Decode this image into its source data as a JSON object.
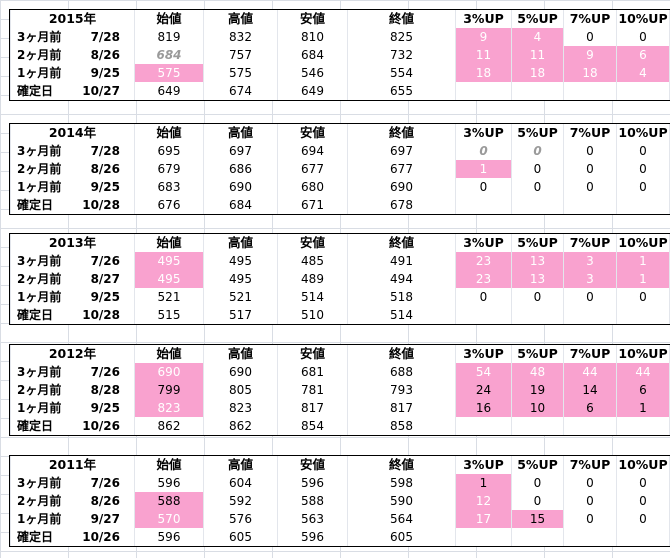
{
  "columns": [
    "始値",
    "高値",
    "安値",
    "終値",
    "3%UP",
    "5%UP",
    "7%UP",
    "10%UP"
  ],
  "colors": {
    "highlight": "#f9a2cf",
    "gray_text": "#9a9a9a"
  },
  "tables": [
    {
      "year": "2015年",
      "rows": [
        {
          "label": "3ヶ月前",
          "date": "7/28",
          "open": "819",
          "high": "832",
          "low": "810",
          "close": "825",
          "up3": "9",
          "up5": "4",
          "up7": "0",
          "up10": "0"
        },
        {
          "label": "2ヶ月前",
          "date": "8/26",
          "open": "684",
          "high": "757",
          "low": "684",
          "close": "732",
          "up3": "11",
          "up5": "11",
          "up7": "9",
          "up10": "6"
        },
        {
          "label": "1ヶ月前",
          "date": "9/25",
          "open": "575",
          "high": "575",
          "low": "546",
          "close": "554",
          "up3": "18",
          "up5": "18",
          "up7": "18",
          "up10": "4"
        },
        {
          "label": "確定日",
          "date": "10/27",
          "open": "649",
          "high": "674",
          "low": "649",
          "close": "655"
        }
      ]
    },
    {
      "year": "2014年",
      "rows": [
        {
          "label": "3ヶ月前",
          "date": "7/28",
          "open": "695",
          "high": "697",
          "low": "694",
          "close": "697",
          "up3": "0",
          "up5": "0",
          "up7": "0",
          "up10": "0"
        },
        {
          "label": "2ヶ月前",
          "date": "8/26",
          "open": "679",
          "high": "686",
          "low": "677",
          "close": "677",
          "up3": "1",
          "up5": "0",
          "up7": "0",
          "up10": "0"
        },
        {
          "label": "1ヶ月前",
          "date": "9/25",
          "open": "683",
          "high": "690",
          "low": "680",
          "close": "690",
          "up3": "0",
          "up5": "0",
          "up7": "0",
          "up10": "0"
        },
        {
          "label": "確定日",
          "date": "10/28",
          "open": "676",
          "high": "684",
          "low": "671",
          "close": "678"
        }
      ]
    },
    {
      "year": "2013年",
      "rows": [
        {
          "label": "3ヶ月前",
          "date": "7/26",
          "open": "495",
          "high": "495",
          "low": "485",
          "close": "491",
          "up3": "23",
          "up5": "13",
          "up7": "3",
          "up10": "1"
        },
        {
          "label": "2ヶ月前",
          "date": "8/27",
          "open": "495",
          "high": "495",
          "low": "489",
          "close": "494",
          "up3": "23",
          "up5": "13",
          "up7": "3",
          "up10": "1"
        },
        {
          "label": "1ヶ月前",
          "date": "9/25",
          "open": "521",
          "high": "521",
          "low": "514",
          "close": "518",
          "up3": "0",
          "up5": "0",
          "up7": "0",
          "up10": "0"
        },
        {
          "label": "確定日",
          "date": "10/28",
          "open": "515",
          "high": "517",
          "low": "510",
          "close": "514"
        }
      ]
    },
    {
      "year": "2012年",
      "rows": [
        {
          "label": "3ヶ月前",
          "date": "7/26",
          "open": "690",
          "high": "690",
          "low": "681",
          "close": "688",
          "up3": "54",
          "up5": "48",
          "up7": "44",
          "up10": "44"
        },
        {
          "label": "2ヶ月前",
          "date": "8/28",
          "open": "799",
          "high": "805",
          "low": "781",
          "close": "793",
          "up3": "24",
          "up5": "19",
          "up7": "14",
          "up10": "6"
        },
        {
          "label": "1ヶ月前",
          "date": "9/25",
          "open": "823",
          "high": "823",
          "low": "817",
          "close": "817",
          "up3": "16",
          "up5": "10",
          "up7": "6",
          "up10": "1"
        },
        {
          "label": "確定日",
          "date": "10/26",
          "open": "862",
          "high": "862",
          "low": "854",
          "close": "858"
        }
      ]
    },
    {
      "year": "2011年",
      "rows": [
        {
          "label": "3ヶ月前",
          "date": "7/26",
          "open": "596",
          "high": "604",
          "low": "596",
          "close": "598",
          "up3": "1",
          "up5": "0",
          "up7": "0",
          "up10": "0"
        },
        {
          "label": "2ヶ月前",
          "date": "8/26",
          "open": "588",
          "high": "592",
          "low": "588",
          "close": "590",
          "up3": "12",
          "up5": "0",
          "up7": "0",
          "up10": "0"
        },
        {
          "label": "1ヶ月前",
          "date": "9/27",
          "open": "570",
          "high": "576",
          "low": "563",
          "close": "564",
          "up3": "17",
          "up5": "15",
          "up7": "0",
          "up10": "0"
        },
        {
          "label": "確定日",
          "date": "10/26",
          "open": "596",
          "high": "605",
          "low": "596",
          "close": "605"
        }
      ]
    }
  ]
}
